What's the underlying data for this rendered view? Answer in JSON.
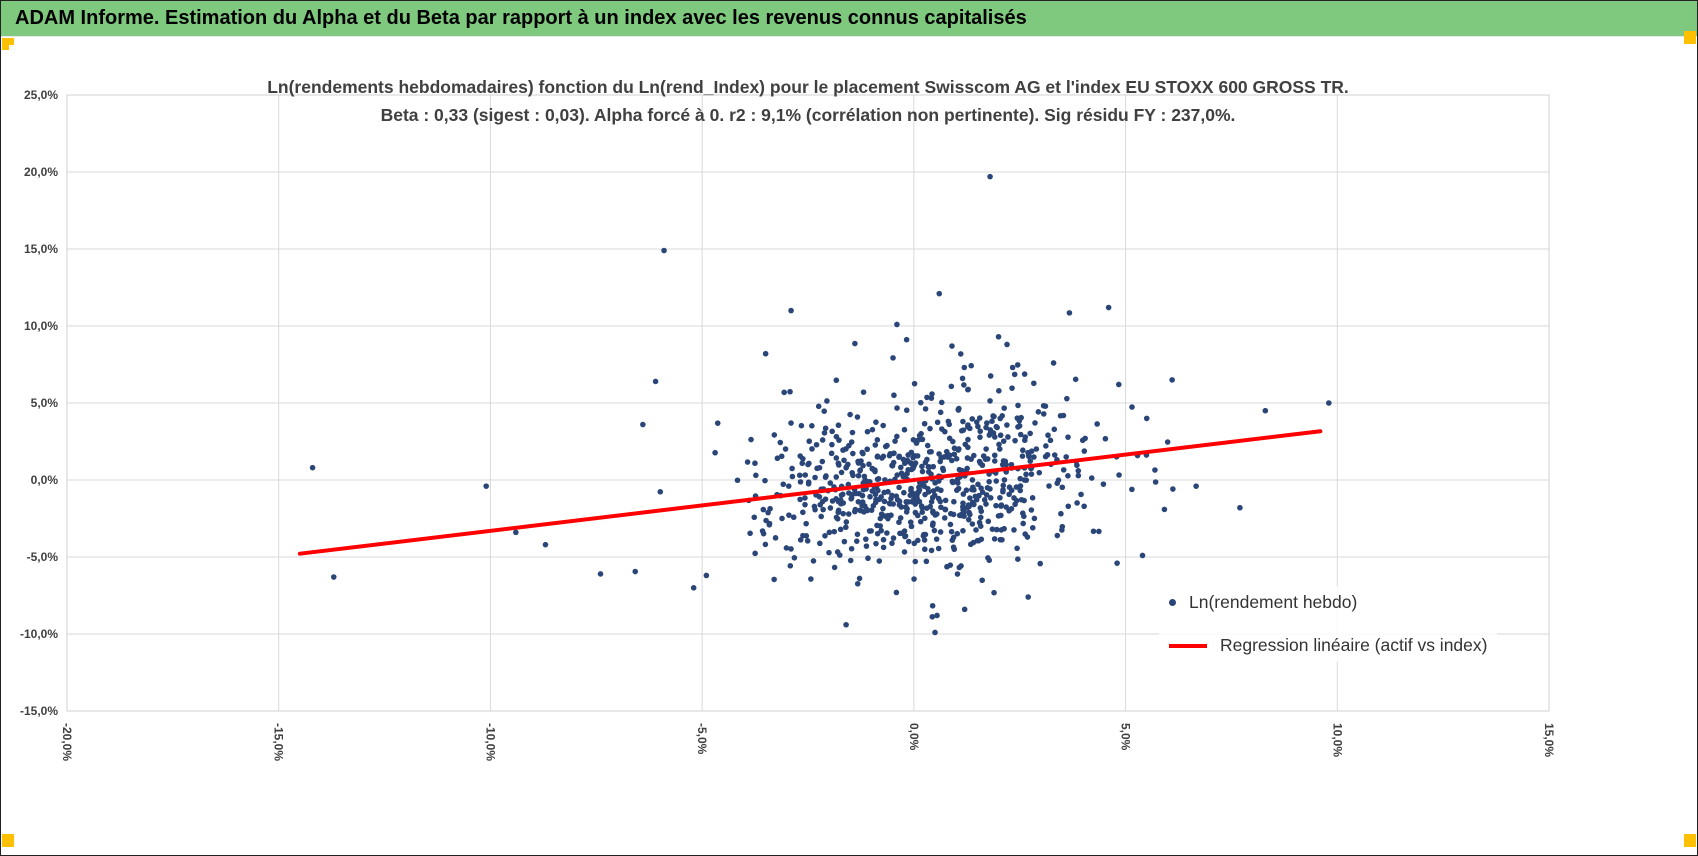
{
  "header": {
    "title": "ADAM Informe. Estimation du Alpha et du Beta par rapport à un index avec les revenus connus capitalisés"
  },
  "colors": {
    "header_bg": "#7FC97F",
    "accent_orange": "#FFC000",
    "point": "#2A4578",
    "regression": "#FF0000",
    "gridline": "#D9D9D9",
    "plot_border": "#D0D0D0",
    "axis_text": "#404040",
    "title_text": "#404040"
  },
  "chart_data": {
    "type": "scatter",
    "title": [
      "Ln(rendements hebdomadaires) fonction du Ln(rend_Index) pour le placement Swisscom AG et l'index EU STOXX 600 GROSS TR.",
      "Beta : 0,33 (sigest : 0,03). Alpha forcé à 0. r2 : 9,1% (corrélation non pertinente). Sig résidu FY : 237,0%."
    ],
    "xlabel": "",
    "ylabel": "",
    "grid": true,
    "x_axis": {
      "min": -20,
      "max": 15,
      "step": 5,
      "tick_labels": [
        "-20,0%",
        "-15,0%",
        "-10,0%",
        "-5,0%",
        "0,0%",
        "5,0%",
        "10,0%",
        "15,0%"
      ]
    },
    "y_axis": {
      "min": -15,
      "max": 25,
      "step": 5,
      "tick_labels": [
        "-15,0%",
        "-10,0%",
        "-5,0%",
        "0,0%",
        "5,0%",
        "10,0%",
        "15,0%",
        "20,0%",
        "25,0%"
      ]
    },
    "stats": {
      "beta": "0,33",
      "sigest": "0,03",
      "alpha_force": "0",
      "r2": "9,1%",
      "correlation_note": "corrélation non pertinente",
      "sig_residu_fy": "237,0%"
    },
    "regression": {
      "slope": 0.33,
      "intercept": 0,
      "x_start": -14.5,
      "x_end": 9.6
    },
    "notable_points": [
      [
        1.8,
        19.7
      ],
      [
        -5.9,
        14.9
      ],
      [
        0.6,
        12.1
      ],
      [
        -2.9,
        11.0
      ],
      [
        4.6,
        11.2
      ],
      [
        -0.4,
        10.1
      ],
      [
        2.0,
        9.3
      ],
      [
        2.2,
        8.8
      ],
      [
        0.9,
        8.7
      ],
      [
        -3.5,
        8.2
      ],
      [
        3.3,
        7.6
      ],
      [
        6.1,
        6.5
      ],
      [
        -6.1,
        6.4
      ],
      [
        9.8,
        5.0
      ],
      [
        8.3,
        4.5
      ],
      [
        5.5,
        4.0
      ],
      [
        -6.4,
        3.6
      ],
      [
        -14.2,
        0.8
      ],
      [
        -10.1,
        -0.4
      ],
      [
        7.7,
        -1.8
      ],
      [
        -9.4,
        -3.4
      ],
      [
        -8.7,
        -4.2
      ],
      [
        5.4,
        -4.9
      ],
      [
        4.8,
        -5.4
      ],
      [
        -4.9,
        -6.2
      ],
      [
        -13.7,
        -6.3
      ],
      [
        -7.4,
        -6.1
      ],
      [
        -5.2,
        -7.0
      ],
      [
        2.7,
        -7.6
      ],
      [
        1.2,
        -8.4
      ],
      [
        -1.6,
        -9.4
      ],
      [
        0.5,
        -9.9
      ]
    ],
    "cloud": {
      "count": 760,
      "seed": 7,
      "x_mean": 0.25,
      "x_std": 1.9,
      "beta": 0.33,
      "resid_std": 2.85,
      "x_clamp": 8.5,
      "y_clamp": 12.3
    },
    "legend": [
      {
        "label": "Ln(rendement hebdo)",
        "marker": "dot"
      },
      {
        "label": "Regression linéaire (actif vs index)",
        "marker": "line"
      }
    ]
  }
}
